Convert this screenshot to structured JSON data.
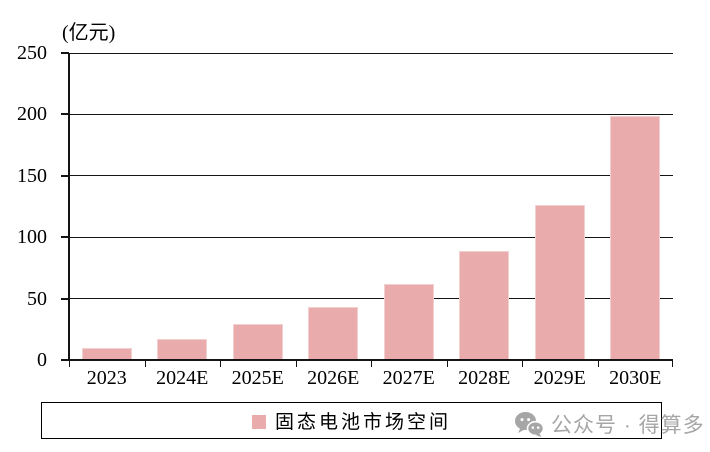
{
  "figure": {
    "unit_label": "(亿元)"
  },
  "chart_data": {
    "type": "bar",
    "title": "",
    "unit_label": "(亿元)",
    "series_name": "固态电池市场空间",
    "categories": [
      "2023",
      "2024E",
      "2025E",
      "2026E",
      "2027E",
      "2028E",
      "2029E",
      "2030E"
    ],
    "values": [
      10,
      17,
      29,
      43,
      62,
      89,
      126,
      199
    ],
    "ylim": [
      0,
      250
    ],
    "yticks": [
      0,
      50,
      100,
      150,
      200,
      250
    ],
    "grid": true,
    "legend_position": "bottom",
    "bar_color": "#e9abab",
    "bar_border_color": "#f2d0d0",
    "axis_color": "#141414"
  },
  "legend": {
    "label": "固态电池市场空间"
  },
  "watermark": {
    "text": "公众号 · 得算多",
    "icon": "wechat-icon",
    "color": "#a6a6a6"
  }
}
